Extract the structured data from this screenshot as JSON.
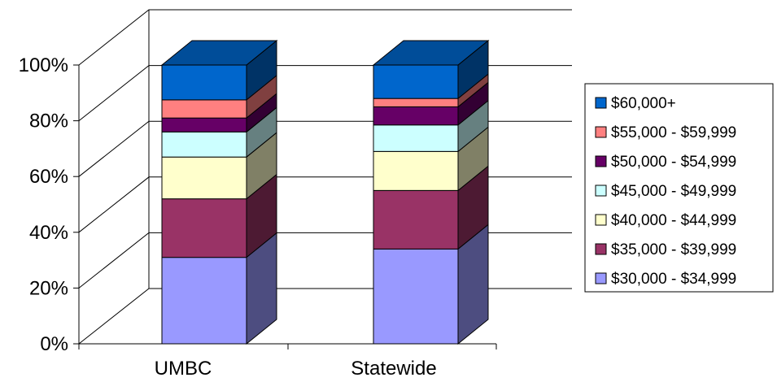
{
  "chart_data": {
    "type": "bar",
    "stacked": true,
    "percent": true,
    "three_d": true,
    "title": "",
    "xlabel": "",
    "ylabel": "",
    "categories": [
      "UMBC",
      "Statewide"
    ],
    "yticks": [
      "0%",
      "20%",
      "40%",
      "60%",
      "80%",
      "100%"
    ],
    "ylim": [
      0,
      100
    ],
    "grid": true,
    "legend_position": "right",
    "series": [
      {
        "name": "$30,000 - $34,999",
        "values": [
          31,
          34
        ],
        "color": "#9999FF"
      },
      {
        "name": "$35,000 - $39,999",
        "values": [
          21,
          21
        ],
        "color": "#993366"
      },
      {
        "name": "$40,000 - $44,999",
        "values": [
          15,
          14
        ],
        "color": "#FFFFCC"
      },
      {
        "name": "$45,000 - $49,999",
        "values": [
          9,
          9.5
        ],
        "color": "#CCFFFF"
      },
      {
        "name": "$50,000 - $54,999",
        "values": [
          5,
          6.5
        ],
        "color": "#660066"
      },
      {
        "name": "$55,000 - $59,999",
        "values": [
          6.5,
          3
        ],
        "color": "#FF8080"
      },
      {
        "name": "$60,000+",
        "values": [
          12.5,
          12
        ],
        "color": "#0066CC"
      }
    ]
  }
}
